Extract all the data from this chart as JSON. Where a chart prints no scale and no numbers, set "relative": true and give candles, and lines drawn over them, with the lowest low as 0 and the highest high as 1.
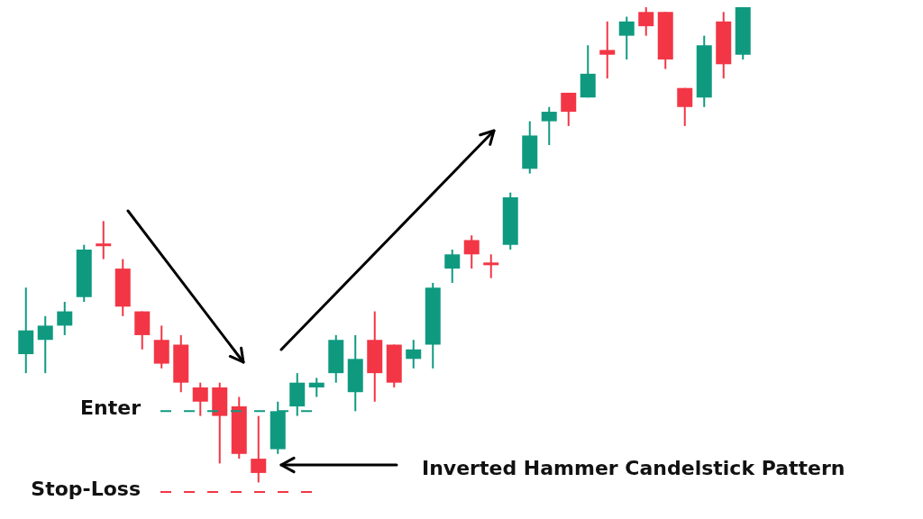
{
  "chart_data": {
    "type": "candlestick",
    "relative": true,
    "categories": [
      null,
      null,
      null,
      null,
      null,
      null,
      null,
      null,
      null,
      null,
      null,
      null,
      null,
      null,
      null,
      null,
      null,
      null,
      null,
      null,
      null,
      null,
      null,
      null,
      null,
      null,
      null,
      null,
      null,
      null,
      null,
      null,
      null,
      null,
      null,
      null,
      null,
      null
    ],
    "ohlc": [
      [
        0.27,
        0.41,
        0.23,
        0.32
      ],
      [
        0.3,
        0.35,
        0.23,
        0.33
      ],
      [
        0.33,
        0.38,
        0.31,
        0.36
      ],
      [
        0.39,
        0.5,
        0.38,
        0.49
      ],
      [
        0.5,
        0.55,
        0.47,
        0.5
      ],
      [
        0.45,
        0.47,
        0.35,
        0.37
      ],
      [
        0.36,
        0.36,
        0.28,
        0.31
      ],
      [
        0.3,
        0.33,
        0.24,
        0.25
      ],
      [
        0.29,
        0.31,
        0.19,
        0.21
      ],
      [
        0.2,
        0.21,
        0.14,
        0.17
      ],
      [
        0.2,
        0.21,
        0.04,
        0.14
      ],
      [
        0.16,
        0.18,
        0.05,
        0.06
      ],
      [
        0.05,
        0.14,
        0,
        0.02
      ],
      [
        0.07,
        0.17,
        0.06,
        0.15
      ],
      [
        0.16,
        0.23,
        0.14,
        0.21
      ],
      [
        0.2,
        0.22,
        0.18,
        0.21
      ],
      [
        0.23,
        0.31,
        0.21,
        0.3
      ],
      [
        0.19,
        0.31,
        0.15,
        0.26
      ],
      [
        0.3,
        0.36,
        0.17,
        0.23
      ],
      [
        0.29,
        0.29,
        0.2,
        0.21
      ],
      [
        0.26,
        0.3,
        0.24,
        0.28
      ],
      [
        0.29,
        0.42,
        0.24,
        0.41
      ],
      [
        0.45,
        0.49,
        0.42,
        0.48
      ],
      [
        0.51,
        0.52,
        0.45,
        0.48
      ],
      [
        0.46,
        0.48,
        0.43,
        0.46
      ],
      [
        0.5,
        0.61,
        0.49,
        0.6
      ],
      [
        0.66,
        0.76,
        0.65,
        0.73
      ],
      [
        0.76,
        0.79,
        0.71,
        0.78
      ],
      [
        0.82,
        0.82,
        0.75,
        0.78
      ],
      [
        0.81,
        0.92,
        0.81,
        0.86
      ],
      [
        0.91,
        0.97,
        0.85,
        0.9
      ],
      [
        0.94,
        0.98,
        0.89,
        0.97
      ],
      [
        0.99,
        1.0,
        0.94,
        0.96
      ],
      [
        0.99,
        0.99,
        0.87,
        0.89
      ],
      [
        0.83,
        0.83,
        0.75,
        0.79
      ],
      [
        0.81,
        0.94,
        0.79,
        0.92
      ],
      [
        0.97,
        0.99,
        0.85,
        0.88
      ],
      [
        0.9,
        1.0,
        0.89,
        1.0
      ]
    ],
    "colors": [
      "#0f9a80",
      "#0f9a80",
      "#0f9a80",
      "#0f9a80",
      "#f23645",
      "#f23645",
      "#f23645",
      "#f23645",
      "#f23645",
      "#f23645",
      "#f23645",
      "#f23645",
      "#f23645",
      "#0f9a80",
      "#0f9a80",
      "#0f9a80",
      "#0f9a80",
      "#0f9a80",
      "#f23645",
      "#f23645",
      "#0f9a80",
      "#0f9a80",
      "#0f9a80",
      "#f23645",
      "#f23645",
      "#0f9a80",
      "#0f9a80",
      "#0f9a80",
      "#f23645",
      "#0f9a80",
      "#f23645",
      "#0f9a80",
      "#f23645",
      "#f23645",
      "#f23645",
      "#0f9a80",
      "#f23645",
      "#0f9a80"
    ],
    "ref_lines": [
      {
        "axis": "y",
        "value": 0.15,
        "label": "Enter",
        "color": "#0f9a80",
        "line_style": "dashed"
      },
      {
        "axis": "y",
        "value": -0.02,
        "label": "Stop-Loss",
        "color": "#f23645",
        "line_style": "dashed"
      }
    ],
    "annotations": [
      "Inverted Hammer Candelstick Pattern"
    ],
    "legend": false
  }
}
